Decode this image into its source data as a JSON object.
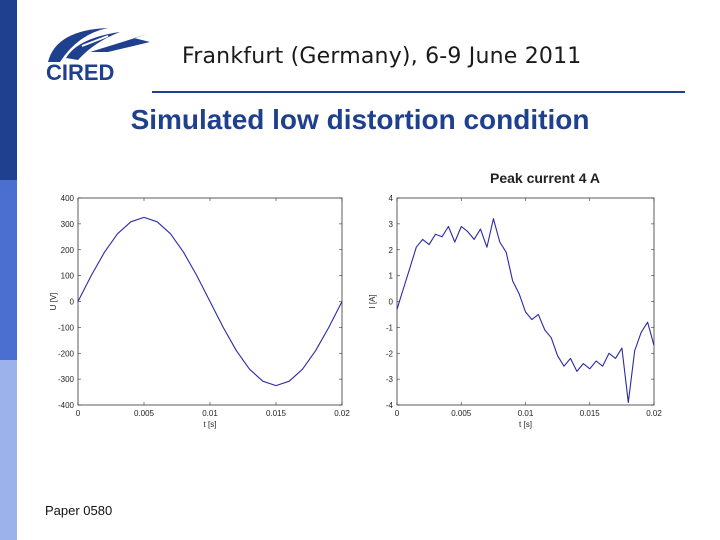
{
  "header": {
    "logo_text": "CIRED",
    "event": "Frankfurt (Germany), 6-9 June 2011"
  },
  "slide": {
    "title": "Simulated low distortion condition",
    "annotation": "Peak current 4 A",
    "footer": "Paper 0580"
  },
  "colors": {
    "sidebar_dark": "#1f3f8f",
    "sidebar_mid": "#4a6fd0",
    "sidebar_light": "#9bb3ea",
    "title": "#1f3f8f",
    "trace": "#2a2aa8"
  },
  "chart_data": [
    {
      "type": "line",
      "title": "",
      "xlabel": "t [s]",
      "ylabel": "U [V]",
      "xlim": [
        0,
        0.02
      ],
      "ylim": [
        -400,
        400
      ],
      "xticks": [
        0,
        0.005,
        0.01,
        0.015,
        0.02
      ],
      "xtick_labels": [
        "0",
        "0.005",
        "0.01",
        "0.015",
        "0.02"
      ],
      "yticks": [
        400,
        300,
        200,
        100,
        0,
        -100,
        -200,
        -300,
        -400
      ],
      "ytick_labels": [
        "400",
        "300",
        "200",
        "100",
        "0",
        "-100",
        "-200",
        "-300",
        "-400"
      ],
      "series": [
        {
          "x": [
            0,
            0.001,
            0.002,
            0.003,
            0.004,
            0.005,
            0.006,
            0.007,
            0.008,
            0.009,
            0.01,
            0.011,
            0.012,
            0.013,
            0.014,
            0.015,
            0.016,
            0.017,
            0.018,
            0.019,
            0.02
          ],
          "y": [
            0,
            100,
            190,
            262,
            308,
            325,
            308,
            262,
            190,
            100,
            0,
            -100,
            -190,
            -262,
            -308,
            -325,
            -308,
            -262,
            -190,
            -100,
            0
          ]
        }
      ]
    },
    {
      "type": "line",
      "title": "",
      "xlabel": "t [s]",
      "ylabel": "I [A]",
      "xlim": [
        0,
        0.02
      ],
      "ylim": [
        -4,
        4
      ],
      "xticks": [
        0,
        0.005,
        0.01,
        0.015,
        0.02
      ],
      "xtick_labels": [
        "0",
        "0.005",
        "0.01",
        "0.015",
        "0.02"
      ],
      "yticks": [
        4,
        3,
        2,
        1,
        0,
        -1,
        -2,
        -3,
        -4
      ],
      "ytick_labels": [
        "4",
        "3",
        "2",
        "1",
        "0",
        "-1",
        "-2",
        "-3",
        "-4"
      ],
      "series": [
        {
          "x": [
            0,
            0.0005,
            0.001,
            0.0015,
            0.002,
            0.0025,
            0.003,
            0.0035,
            0.004,
            0.0045,
            0.005,
            0.0055,
            0.006,
            0.0065,
            0.007,
            0.0075,
            0.008,
            0.0085,
            0.009,
            0.0095,
            0.01,
            0.0105,
            0.011,
            0.0115,
            0.012,
            0.0125,
            0.013,
            0.0135,
            0.014,
            0.0145,
            0.015,
            0.0155,
            0.016,
            0.0165,
            0.017,
            0.0175,
            0.018,
            0.0185,
            0.019,
            0.0195,
            0.02
          ],
          "y": [
            -0.3,
            0.5,
            1.3,
            2.1,
            2.4,
            2.2,
            2.6,
            2.5,
            2.9,
            2.3,
            2.9,
            2.7,
            2.4,
            2.8,
            2.1,
            3.2,
            2.3,
            1.9,
            0.8,
            0.3,
            -0.4,
            -0.7,
            -0.5,
            -1.1,
            -1.4,
            -2.1,
            -2.5,
            -2.2,
            -2.7,
            -2.4,
            -2.6,
            -2.3,
            -2.5,
            -2.0,
            -2.2,
            -1.8,
            -3.9,
            -1.9,
            -1.2,
            -0.8,
            -1.7
          ]
        }
      ]
    }
  ]
}
